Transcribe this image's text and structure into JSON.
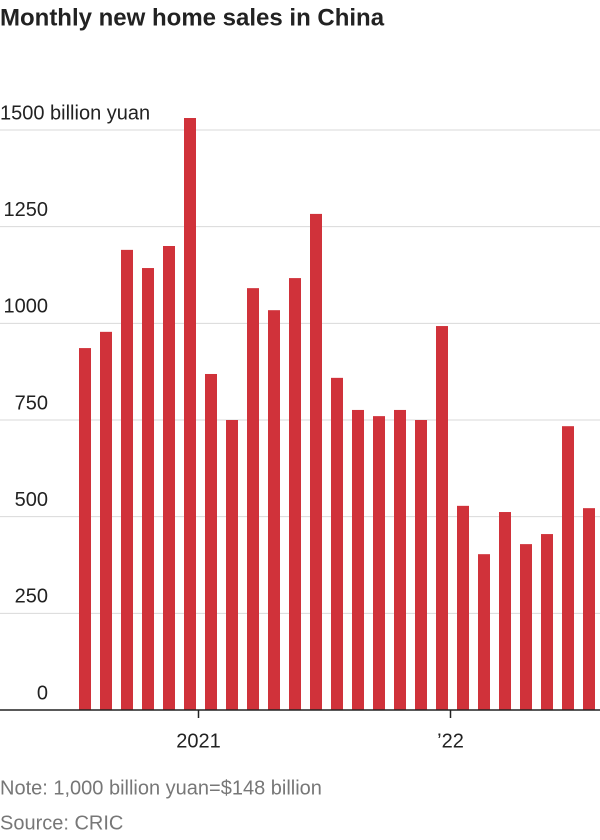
{
  "chart_data": {
    "type": "bar",
    "title": "Monthly new home sales in China",
    "categories": [
      null,
      null,
      null,
      null,
      null,
      null,
      "2021",
      null,
      null,
      null,
      null,
      null,
      null,
      null,
      null,
      null,
      null,
      null,
      "’22",
      null,
      null,
      null,
      null,
      null,
      null
    ],
    "values": [
      936,
      978,
      1190,
      1143,
      1200,
      1531,
      869,
      750,
      1091,
      1034,
      1117,
      1283,
      859,
      776,
      760,
      776,
      750,
      993,
      528,
      403,
      512,
      429,
      455,
      734,
      522
    ],
    "color": "#d0323a",
    "ylim": [
      0,
      1500
    ],
    "yticks": [
      0,
      250,
      500,
      750,
      1000,
      1250,
      {
        "value": 1500,
        "label": "1500 billion yuan"
      }
    ],
    "grid": true,
    "notes": [
      "Note: 1,000 billion yuan=$148 billion",
      "Source: CRIC"
    ]
  }
}
